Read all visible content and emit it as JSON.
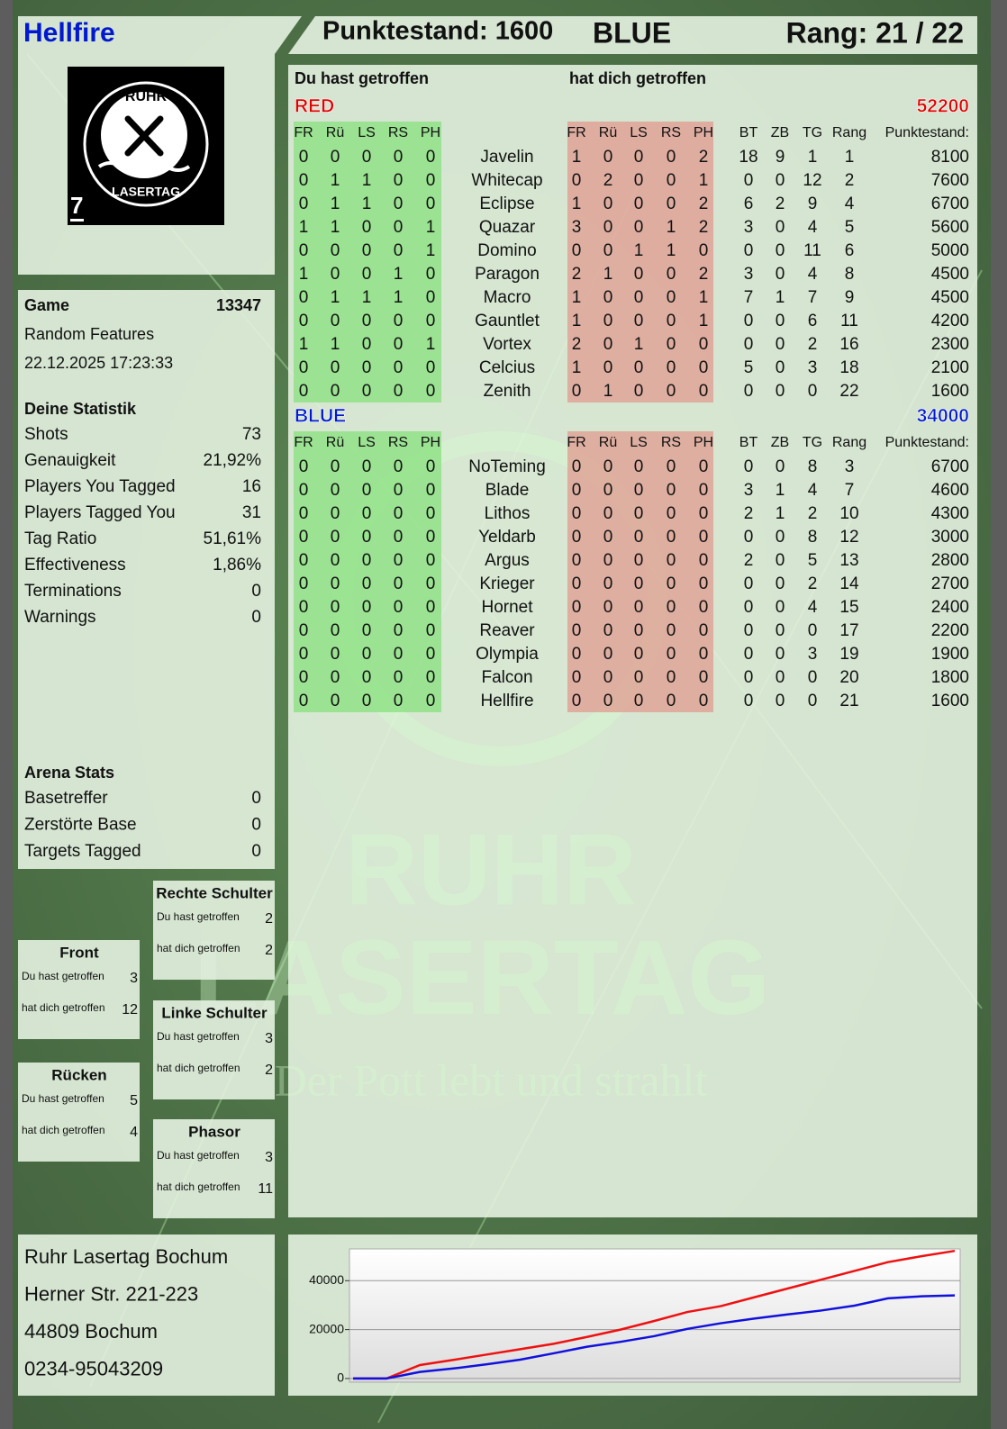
{
  "header": {
    "player": "Hellfire",
    "score": "Punktestand: 1600",
    "team": "BLUE",
    "rank": "Rang: 21 / 22"
  },
  "logo": {
    "top": "RUHR",
    "bottom": "LASERTAG",
    "number": "7"
  },
  "game": {
    "label": "Game",
    "id": 13347,
    "mode": "Random Features",
    "date": "22.12.2025 17:23:33"
  },
  "stats": {
    "title": "Deine Statistik",
    "rows": [
      [
        "Shots",
        73
      ],
      [
        "Genauigkeit",
        "21,92%"
      ],
      [
        "Players You Tagged",
        16
      ],
      [
        "Players Tagged You",
        31
      ],
      [
        "Tag Ratio",
        "51,61%"
      ],
      [
        "Effectiveness",
        "1,86%"
      ],
      [
        "Terminations",
        0
      ],
      [
        "Warnings",
        0
      ]
    ]
  },
  "arena": {
    "title": "Arena Stats",
    "rows": [
      [
        "Basetreffer",
        0
      ],
      [
        "Zerstörte Base",
        0
      ],
      [
        "Targets Tagged",
        0
      ]
    ]
  },
  "zones": [
    {
      "name": "Rechte Schulter",
      "rows": [
        [
          "Du hast getroffen",
          2
        ],
        [
          "hat dich getroffen",
          2
        ]
      ]
    },
    {
      "name": "Front",
      "rows": [
        [
          "Du hast getroffen",
          3
        ],
        [
          "hat dich getroffen",
          12
        ]
      ]
    },
    {
      "name": "Linke Schulter",
      "rows": [
        [
          "Du hast getroffen",
          3
        ],
        [
          "hat dich getroffen",
          2
        ]
      ]
    },
    {
      "name": "Rücken",
      "rows": [
        [
          "Du hast getroffen",
          5
        ],
        [
          "hat dich getroffen",
          4
        ]
      ]
    },
    {
      "name": "Phasor",
      "rows": [
        [
          "Du hast getroffen",
          3
        ],
        [
          "hat dich getroffen",
          11
        ]
      ]
    }
  ],
  "address": [
    "Ruhr Lasertag Bochum",
    "Herner Str. 221-223",
    "44809 Bochum",
    "0234-95043209"
  ],
  "watermark": {
    "line1": "RUHR",
    "line2": "LASERTAG",
    "slogan": "Der Pott lebt und strahlt"
  },
  "scoreboard": {
    "you_hit": "Du hast getroffen",
    "hit_you": "hat dich getroffen",
    "hit_columns": [
      "FR",
      "Rü",
      "LS",
      "RS",
      "PH"
    ],
    "info_columns": [
      "BT",
      "ZB",
      "TG",
      "Rang",
      "Punktestand:"
    ],
    "teams": [
      {
        "name": "RED",
        "color": "#e00000",
        "total": 52200,
        "players": [
          {
            "name": "Javelin",
            "you_hit": [
              0,
              0,
              0,
              0,
              0
            ],
            "hit_you": [
              1,
              0,
              0,
              0,
              2
            ],
            "info": [
              18,
              9,
              1,
              1,
              8100
            ]
          },
          {
            "name": "Whitecap",
            "you_hit": [
              0,
              1,
              1,
              0,
              0
            ],
            "hit_you": [
              0,
              2,
              0,
              0,
              1
            ],
            "info": [
              0,
              0,
              12,
              2,
              7600
            ]
          },
          {
            "name": "Eclipse",
            "you_hit": [
              0,
              1,
              1,
              0,
              0
            ],
            "hit_you": [
              1,
              0,
              0,
              0,
              2
            ],
            "info": [
              6,
              2,
              9,
              4,
              6700
            ]
          },
          {
            "name": "Quazar",
            "you_hit": [
              1,
              1,
              0,
              0,
              1
            ],
            "hit_you": [
              3,
              0,
              0,
              1,
              2
            ],
            "info": [
              3,
              0,
              4,
              5,
              5600
            ]
          },
          {
            "name": "Domino",
            "you_hit": [
              0,
              0,
              0,
              0,
              1
            ],
            "hit_you": [
              0,
              0,
              1,
              1,
              0
            ],
            "info": [
              0,
              0,
              11,
              6,
              5000
            ]
          },
          {
            "name": "Paragon",
            "you_hit": [
              1,
              0,
              0,
              1,
              0
            ],
            "hit_you": [
              2,
              1,
              0,
              0,
              2
            ],
            "info": [
              3,
              0,
              4,
              8,
              4500
            ]
          },
          {
            "name": "Macro",
            "you_hit": [
              0,
              1,
              1,
              1,
              0
            ],
            "hit_you": [
              1,
              0,
              0,
              0,
              1
            ],
            "info": [
              7,
              1,
              7,
              9,
              4500
            ]
          },
          {
            "name": "Gauntlet",
            "you_hit": [
              0,
              0,
              0,
              0,
              0
            ],
            "hit_you": [
              1,
              0,
              0,
              0,
              1
            ],
            "info": [
              0,
              0,
              6,
              11,
              4200
            ]
          },
          {
            "name": "Vortex",
            "you_hit": [
              1,
              1,
              0,
              0,
              1
            ],
            "hit_you": [
              2,
              0,
              1,
              0,
              0
            ],
            "info": [
              0,
              0,
              2,
              16,
              2300
            ]
          },
          {
            "name": "Celcius",
            "you_hit": [
              0,
              0,
              0,
              0,
              0
            ],
            "hit_you": [
              1,
              0,
              0,
              0,
              0
            ],
            "info": [
              5,
              0,
              3,
              18,
              2100
            ]
          },
          {
            "name": "Zenith",
            "you_hit": [
              0,
              0,
              0,
              0,
              0
            ],
            "hit_you": [
              0,
              1,
              0,
              0,
              0
            ],
            "info": [
              0,
              0,
              0,
              22,
              1600
            ]
          }
        ]
      },
      {
        "name": "BLUE",
        "color": "#0018d0",
        "total": 34000,
        "players": [
          {
            "name": "NoTeming",
            "you_hit": [
              0,
              0,
              0,
              0,
              0
            ],
            "hit_you": [
              0,
              0,
              0,
              0,
              0
            ],
            "info": [
              0,
              0,
              8,
              3,
              6700
            ]
          },
          {
            "name": "Blade",
            "you_hit": [
              0,
              0,
              0,
              0,
              0
            ],
            "hit_you": [
              0,
              0,
              0,
              0,
              0
            ],
            "info": [
              3,
              1,
              4,
              7,
              4600
            ]
          },
          {
            "name": "Lithos",
            "you_hit": [
              0,
              0,
              0,
              0,
              0
            ],
            "hit_you": [
              0,
              0,
              0,
              0,
              0
            ],
            "info": [
              2,
              1,
              2,
              10,
              4300
            ]
          },
          {
            "name": "Yeldarb",
            "you_hit": [
              0,
              0,
              0,
              0,
              0
            ],
            "hit_you": [
              0,
              0,
              0,
              0,
              0
            ],
            "info": [
              0,
              0,
              8,
              12,
              3000
            ]
          },
          {
            "name": "Argus",
            "you_hit": [
              0,
              0,
              0,
              0,
              0
            ],
            "hit_you": [
              0,
              0,
              0,
              0,
              0
            ],
            "info": [
              2,
              0,
              5,
              13,
              2800
            ]
          },
          {
            "name": "Krieger",
            "you_hit": [
              0,
              0,
              0,
              0,
              0
            ],
            "hit_you": [
              0,
              0,
              0,
              0,
              0
            ],
            "info": [
              0,
              0,
              2,
              14,
              2700
            ]
          },
          {
            "name": "Hornet",
            "you_hit": [
              0,
              0,
              0,
              0,
              0
            ],
            "hit_you": [
              0,
              0,
              0,
              0,
              0
            ],
            "info": [
              0,
              0,
              4,
              15,
              2400
            ]
          },
          {
            "name": "Reaver",
            "you_hit": [
              0,
              0,
              0,
              0,
              0
            ],
            "hit_you": [
              0,
              0,
              0,
              0,
              0
            ],
            "info": [
              0,
              0,
              0,
              17,
              2200
            ]
          },
          {
            "name": "Olympia",
            "you_hit": [
              0,
              0,
              0,
              0,
              0
            ],
            "hit_you": [
              0,
              0,
              0,
              0,
              0
            ],
            "info": [
              0,
              0,
              3,
              19,
              1900
            ]
          },
          {
            "name": "Falcon",
            "you_hit": [
              0,
              0,
              0,
              0,
              0
            ],
            "hit_you": [
              0,
              0,
              0,
              0,
              0
            ],
            "info": [
              0,
              0,
              0,
              20,
              1800
            ]
          },
          {
            "name": "Hellfire",
            "you_hit": [
              0,
              0,
              0,
              0,
              0
            ],
            "hit_you": [
              0,
              0,
              0,
              0,
              0
            ],
            "info": [
              0,
              0,
              0,
              21,
              1600
            ]
          }
        ]
      }
    ]
  },
  "chart_data": {
    "type": "line",
    "ylim": [
      -1500,
      53000
    ],
    "yticks": [
      0,
      20000,
      40000
    ],
    "grid": true,
    "series": [
      {
        "color": "#ee1111",
        "values": [
          0,
          0,
          5500,
          7600,
          9800,
          12000,
          14200,
          17000,
          20000,
          23500,
          27200,
          29600,
          33200,
          36800,
          40400,
          44000,
          47600,
          50000,
          52200
        ]
      },
      {
        "color": "#1111dd",
        "values": [
          0,
          0,
          2700,
          4100,
          5800,
          7700,
          10300,
          13000,
          15000,
          17300,
          20300,
          22600,
          24500,
          26200,
          27800,
          29800,
          32800,
          33600,
          34000
        ]
      }
    ]
  }
}
